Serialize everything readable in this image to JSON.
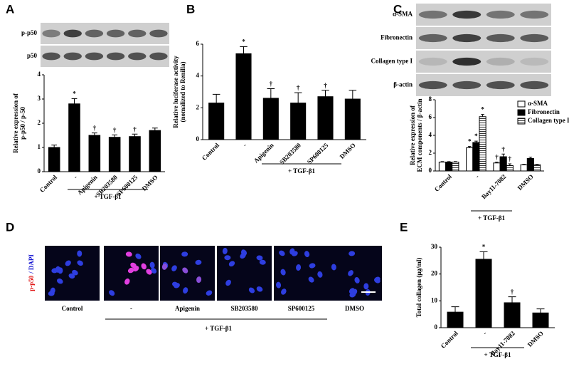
{
  "chart_data": [
    {
      "type": "bar",
      "label": "A",
      "blot_rows": [
        "p-p50",
        "p50"
      ],
      "ylabel": [
        "Relative expression of",
        "p-p50 / p-50"
      ],
      "categories": [
        "Control",
        "-",
        "Apigenin",
        "SB203580",
        "SP600125",
        "DMSO"
      ],
      "values": [
        1.0,
        2.8,
        1.5,
        1.42,
        1.45,
        1.7
      ],
      "errors": [
        0.1,
        0.22,
        0.1,
        0.1,
        0.1,
        0.1
      ],
      "annotations": [
        null,
        "*",
        "†",
        "†",
        "†",
        null
      ],
      "color": "#000000",
      "ylim": [
        0,
        4
      ],
      "yticks": [
        0,
        1,
        2,
        3,
        4
      ],
      "group_label": "+ TGF-β1"
    },
    {
      "type": "bar",
      "label": "B",
      "ylabel": [
        "Relative luciferase activity",
        "(nomalized to Renilla)"
      ],
      "categories": [
        "Control",
        "-",
        "Apigenin",
        "SB203580",
        "SP600125",
        "DMSO"
      ],
      "values": [
        2.3,
        5.4,
        2.6,
        2.3,
        2.7,
        2.55
      ],
      "errors": [
        0.55,
        0.45,
        0.6,
        0.65,
        0.4,
        0.55
      ],
      "annotations": [
        null,
        "*",
        "†",
        "†",
        "†",
        null
      ],
      "color": "#000000",
      "ylim": [
        0,
        6
      ],
      "yticks": [
        0,
        2,
        4,
        6
      ],
      "group_label": "+ TGF-β1"
    },
    {
      "type": "grouped_bar",
      "label": "C",
      "blot_rows": [
        "α-SMA",
        "Fibronectin",
        "Collagen type I",
        "β-actin"
      ],
      "ylabel": [
        "Relative expression of",
        "ECM components / β-actin"
      ],
      "categories": [
        "Control",
        "-",
        "Bay11-7082",
        "DMSO"
      ],
      "series": [
        {
          "name": "α-SMA",
          "color": "#ffffff",
          "values": [
            1.0,
            2.6,
            0.9,
            0.7
          ],
          "errors": [
            0.05,
            0.15,
            0.1,
            0.05
          ],
          "annotations": [
            null,
            "*",
            "†",
            null
          ]
        },
        {
          "name": "Fibronectin",
          "color": "#000000",
          "values": [
            1.0,
            3.2,
            1.6,
            1.4
          ],
          "errors": [
            0.05,
            0.15,
            0.3,
            0.15
          ],
          "annotations": [
            null,
            "*",
            "†",
            null
          ]
        },
        {
          "name": "Collagen type I",
          "color": "#ffffff",
          "hatch": true,
          "values": [
            1.0,
            6.1,
            0.6,
            0.7
          ],
          "errors": [
            0.05,
            0.25,
            0.2,
            0.05
          ],
          "annotations": [
            null,
            "*",
            "†",
            null
          ]
        }
      ],
      "legend": "upper right",
      "ylim": [
        0,
        8
      ],
      "yticks": [
        0,
        2,
        4,
        6,
        8
      ],
      "group_label": "+ TGF-β1"
    },
    {
      "type": "bar",
      "label": "E",
      "ylabel": [
        "Total collagen (μg/ml)"
      ],
      "categories": [
        "Control",
        "-",
        "Bay11-7082",
        "DMSO"
      ],
      "values": [
        5.8,
        25.5,
        9.3,
        5.5
      ],
      "errors": [
        2.0,
        2.8,
        2.2,
        1.5
      ],
      "annotations": [
        null,
        "*",
        "†",
        null
      ],
      "color": "#000000",
      "ylim": [
        0,
        30
      ],
      "yticks": [
        0,
        10,
        20,
        30
      ],
      "group_label": "+ TGF-β1"
    }
  ],
  "image_panel": {
    "label": "D",
    "stain_label": [
      "p-p50",
      "/ DAPI"
    ],
    "categories": [
      "Control",
      "-",
      "Apigenin",
      "SB203580",
      "SP600125",
      "DMSO"
    ],
    "group_label": "+ TGF-β1"
  }
}
